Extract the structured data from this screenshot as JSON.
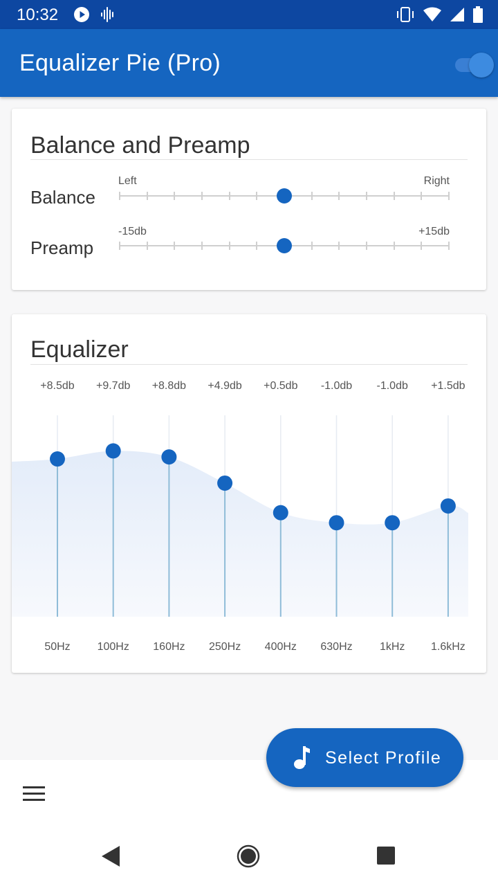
{
  "status_bar": {
    "time": "10:32",
    "icons_left": [
      "play-circle-icon",
      "voice-waveform-icon"
    ],
    "icons_right": [
      "vibrate-icon",
      "wifi-icon",
      "signal-icon",
      "battery-icon"
    ]
  },
  "app_bar": {
    "title": "Equalizer Pie (Pro)",
    "toggle_on": true
  },
  "balance_card": {
    "title": "Balance and Preamp",
    "balance": {
      "label": "Balance",
      "min_label": "Left",
      "max_label": "Right",
      "value": 0.5
    },
    "preamp": {
      "label": "Preamp",
      "min_label": "-15db",
      "max_label": "+15db",
      "value": 0.5
    }
  },
  "equalizer_card": {
    "title": "Equalizer",
    "bands": [
      {
        "freq": "50Hz",
        "gain_label": "+8.5db",
        "gain": 8.5
      },
      {
        "freq": "100Hz",
        "gain_label": "+9.7db",
        "gain": 9.7
      },
      {
        "freq": "160Hz",
        "gain_label": "+8.8db",
        "gain": 8.8
      },
      {
        "freq": "250Hz",
        "gain_label": "+4.9db",
        "gain": 4.9
      },
      {
        "freq": "400Hz",
        "gain_label": "+0.5db",
        "gain": 0.5
      },
      {
        "freq": "630Hz",
        "gain_label": "-1.0db",
        "gain": -1.0
      },
      {
        "freq": "1kHz",
        "gain_label": "-1.0db",
        "gain": -1.0
      },
      {
        "freq": "1.6kHz",
        "gain_label": "+1.5db",
        "gain": 1.5
      }
    ]
  },
  "fab": {
    "label": "Select Profile",
    "icon": "music-note-icon"
  },
  "bottom_bar": {
    "menu_icon": "hamburger-menu-icon"
  },
  "nav_bar": {
    "buttons": [
      "back-icon",
      "home-icon",
      "recents-icon"
    ]
  },
  "colors": {
    "primary": "#1565c0",
    "primary_dark": "#0d47a1",
    "eq_fill": "#e6eefa",
    "eq_line": "#8fbcd8"
  }
}
